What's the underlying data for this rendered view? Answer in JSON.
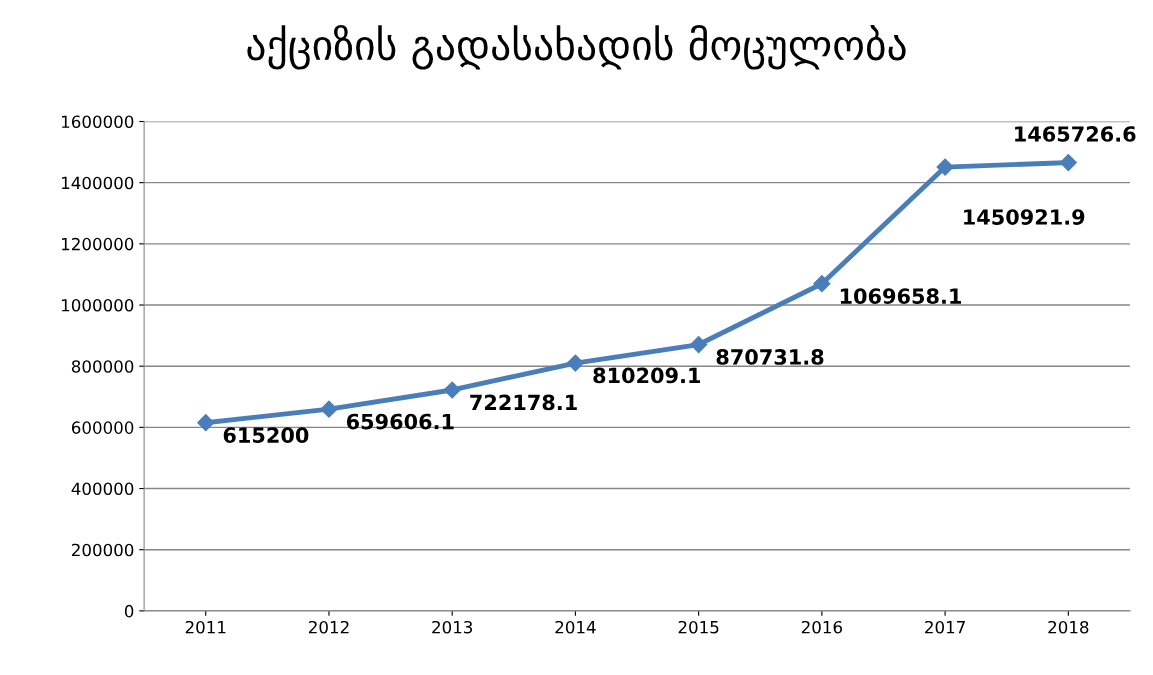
{
  "chart_data": {
    "type": "line",
    "title": "აქციზის გადასახადის მოცულობა",
    "categories": [
      "2011",
      "2012",
      "2013",
      "2014",
      "2015",
      "2016",
      "2017",
      "2018"
    ],
    "series": [
      {
        "color": "#4a7ebb",
        "values": [
          615200,
          659606.1,
          722178.1,
          810209.1,
          870731.8,
          1069658.1,
          1450921.9,
          1465726.6
        ]
      }
    ],
    "ylim": [
      0,
      1600000
    ],
    "yticks": [
      0,
      200000,
      400000,
      600000,
      800000,
      1000000,
      1200000,
      1400000,
      1600000
    ],
    "grid": "y",
    "marker": "diamond",
    "line_style": "solid",
    "data_labels": true
  }
}
